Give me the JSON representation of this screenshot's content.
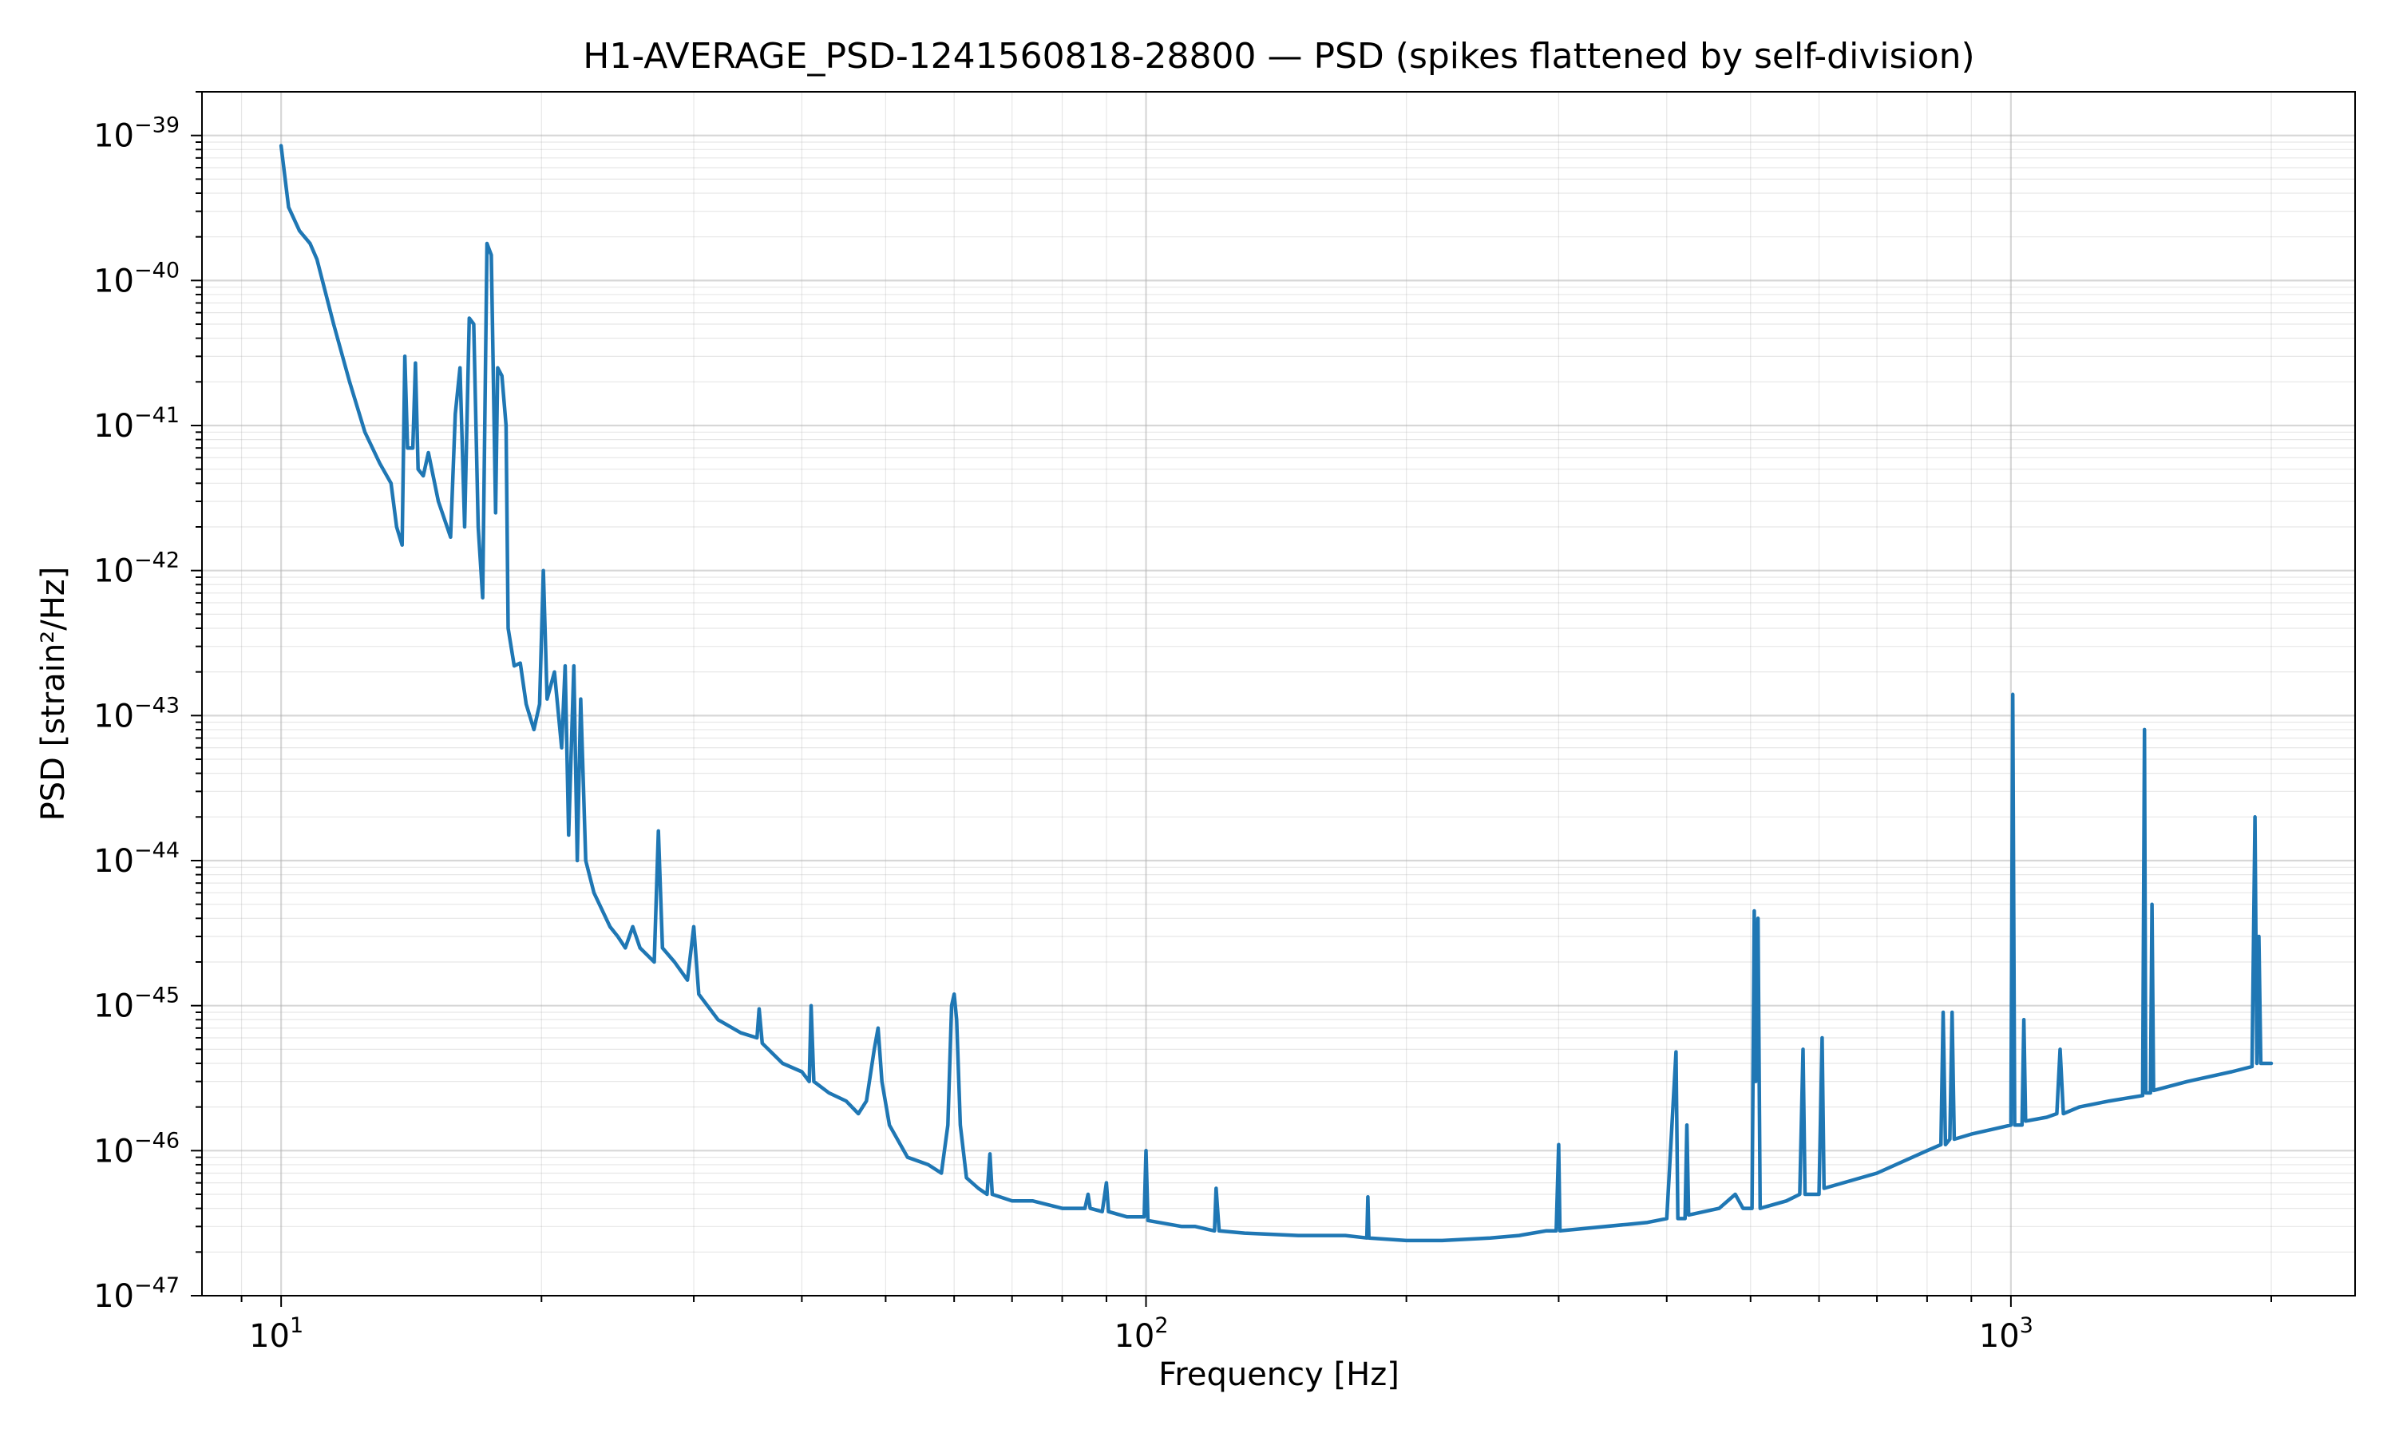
{
  "chart_data": {
    "type": "line",
    "title": "H1-AVERAGE_PSD-1241560818-28800 — PSD (spikes flattened by self-division)",
    "xlabel": "Frequency [Hz]",
    "ylabel": "PSD [strain²/Hz]",
    "xscale": "log",
    "yscale": "log",
    "xlim": [
      8.1,
      2500
    ],
    "ylim": [
      1e-47,
      2e-39
    ],
    "grid": true,
    "line_color": "#1f77b4",
    "x_ticks": [
      {
        "value": 10,
        "base": "10",
        "exp": "1"
      },
      {
        "value": 100,
        "base": "10",
        "exp": "2"
      },
      {
        "value": 1000,
        "base": "10",
        "exp": "3"
      }
    ],
    "y_ticks": [
      {
        "value": 1e-39,
        "base": "10",
        "exp": "−39"
      },
      {
        "value": 1e-40,
        "base": "10",
        "exp": "−40"
      },
      {
        "value": 1e-41,
        "base": "10",
        "exp": "−41"
      },
      {
        "value": 1e-42,
        "base": "10",
        "exp": "−42"
      },
      {
        "value": 1e-43,
        "base": "10",
        "exp": "−43"
      },
      {
        "value": 1e-44,
        "base": "10",
        "exp": "−44"
      },
      {
        "value": 1e-45,
        "base": "10",
        "exp": "−45"
      },
      {
        "value": 1e-46,
        "base": "10",
        "exp": "−46"
      },
      {
        "value": 1e-47,
        "base": "10",
        "exp": "−47"
      }
    ],
    "series": [
      {
        "points": [
          [
            10,
            8.5e-40
          ],
          [
            10.2,
            3.2e-40
          ],
          [
            10.5,
            2.2e-40
          ],
          [
            10.8,
            1.8e-40
          ],
          [
            11.0,
            1.4e-40
          ],
          [
            11.5,
            5e-41
          ],
          [
            12.0,
            2e-41
          ],
          [
            12.5,
            9e-42
          ],
          [
            13.0,
            5.5e-42
          ],
          [
            13.4,
            4e-42
          ],
          [
            13.6,
            2e-42
          ],
          [
            13.8,
            1.5e-42
          ],
          [
            13.9,
            3e-41
          ],
          [
            14.0,
            7e-42
          ],
          [
            14.2,
            7e-42
          ],
          [
            14.3,
            2.7e-41
          ],
          [
            14.4,
            5e-42
          ],
          [
            14.6,
            4.5e-42
          ],
          [
            14.8,
            6.5e-42
          ],
          [
            15.2,
            3e-42
          ],
          [
            15.7,
            1.7e-42
          ],
          [
            15.9,
            1.2e-41
          ],
          [
            16.1,
            2.5e-41
          ],
          [
            16.3,
            2e-42
          ],
          [
            16.5,
            5.5e-41
          ],
          [
            16.7,
            5e-41
          ],
          [
            16.9,
            2e-42
          ],
          [
            17.1,
            6.5e-43
          ],
          [
            17.3,
            1.8e-40
          ],
          [
            17.5,
            1.5e-40
          ],
          [
            17.7,
            2.5e-42
          ],
          [
            17.8,
            2.5e-41
          ],
          [
            18.0,
            2.2e-41
          ],
          [
            18.2,
            1e-41
          ],
          [
            18.3,
            4e-43
          ],
          [
            18.6,
            2.2e-43
          ],
          [
            18.9,
            2.3e-43
          ],
          [
            19.2,
            1.2e-43
          ],
          [
            19.6,
            8e-44
          ],
          [
            19.9,
            1.2e-43
          ],
          [
            20.1,
            1e-42
          ],
          [
            20.3,
            1.3e-43
          ],
          [
            20.7,
            2e-43
          ],
          [
            21.1,
            6e-44
          ],
          [
            21.3,
            2.2e-43
          ],
          [
            21.5,
            1.5e-44
          ],
          [
            21.8,
            2.2e-43
          ],
          [
            22.0,
            1e-44
          ],
          [
            22.2,
            1.3e-43
          ],
          [
            22.5,
            1e-44
          ],
          [
            23.0,
            6e-45
          ],
          [
            24.0,
            3.5e-45
          ],
          [
            24.5,
            3e-45
          ],
          [
            25.0,
            2.5e-45
          ],
          [
            25.5,
            3.5e-45
          ],
          [
            26.0,
            2.5e-45
          ],
          [
            27.0,
            2e-45
          ],
          [
            27.3,
            1.6e-44
          ],
          [
            27.6,
            2.5e-45
          ],
          [
            28.5,
            2e-45
          ],
          [
            29.5,
            1.5e-45
          ],
          [
            30.0,
            3.5e-45
          ],
          [
            30.4,
            1.2e-45
          ],
          [
            32.0,
            8e-46
          ],
          [
            34.0,
            6.5e-46
          ],
          [
            35.5,
            6e-46
          ],
          [
            35.7,
            9.5e-46
          ],
          [
            36.0,
            5.5e-46
          ],
          [
            38.0,
            4e-46
          ],
          [
            40.0,
            3.5e-46
          ],
          [
            40.8,
            3e-46
          ],
          [
            41.0,
            1e-45
          ],
          [
            41.3,
            3e-46
          ],
          [
            43.0,
            2.5e-46
          ],
          [
            45.0,
            2.2e-46
          ],
          [
            46.5,
            1.8e-46
          ],
          [
            47.5,
            2.2e-46
          ],
          [
            48.5,
            5e-46
          ],
          [
            49.0,
            7e-46
          ],
          [
            49.5,
            3e-46
          ],
          [
            50.5,
            1.5e-46
          ],
          [
            53.0,
            9e-47
          ],
          [
            56.0,
            8e-47
          ],
          [
            58.0,
            7e-47
          ],
          [
            59.0,
            1.5e-46
          ],
          [
            59.6,
            1e-45
          ],
          [
            60.0,
            1.2e-45
          ],
          [
            60.4,
            8e-46
          ],
          [
            61.0,
            1.5e-46
          ],
          [
            62.0,
            6.5e-47
          ],
          [
            64.0,
            5.5e-47
          ],
          [
            65.5,
            5e-47
          ],
          [
            66.0,
            9.5e-47
          ],
          [
            66.4,
            5e-47
          ],
          [
            70.0,
            4.5e-47
          ],
          [
            74.0,
            4.5e-47
          ],
          [
            80.0,
            4e-47
          ],
          [
            85.0,
            4e-47
          ],
          [
            85.7,
            5e-47
          ],
          [
            86.2,
            4e-47
          ],
          [
            89.0,
            3.8e-47
          ],
          [
            90.0,
            6e-47
          ],
          [
            90.5,
            3.8e-47
          ],
          [
            95.0,
            3.5e-47
          ],
          [
            99.5,
            3.5e-47
          ],
          [
            100.0,
            1e-46
          ],
          [
            100.5,
            3.3e-47
          ],
          [
            110.0,
            3e-47
          ],
          [
            114.0,
            3e-47
          ],
          [
            120.0,
            2.8e-47
          ],
          [
            120.5,
            5.5e-47
          ],
          [
            121.5,
            2.8e-47
          ],
          [
            130.0,
            2.7e-47
          ],
          [
            150.0,
            2.6e-47
          ],
          [
            170.0,
            2.6e-47
          ],
          [
            180.0,
            2.5e-47
          ],
          [
            180.5,
            4.8e-47
          ],
          [
            181.0,
            2.5e-47
          ],
          [
            200.0,
            2.4e-47
          ],
          [
            220.0,
            2.4e-47
          ],
          [
            250.0,
            2.5e-47
          ],
          [
            270.0,
            2.6e-47
          ],
          [
            280.0,
            2.7e-47
          ],
          [
            290.0,
            2.8e-47
          ],
          [
            298.0,
            2.8e-47
          ],
          [
            300.0,
            1.1e-46
          ],
          [
            301.0,
            2.8e-47
          ],
          [
            320.0,
            2.9e-47
          ],
          [
            360.0,
            3.1e-47
          ],
          [
            380.0,
            3.2e-47
          ],
          [
            400.0,
            3.4e-47
          ],
          [
            410.0,
            4.8e-46
          ],
          [
            412.0,
            3.4e-47
          ],
          [
            420.0,
            3.4e-47
          ],
          [
            422.0,
            1.5e-46
          ],
          [
            424.0,
            3.6e-47
          ],
          [
            460.0,
            4e-47
          ],
          [
            480.0,
            5e-47
          ],
          [
            490.0,
            4e-47
          ],
          [
            502.0,
            4e-47
          ],
          [
            505.0,
            4.5e-45
          ],
          [
            507.0,
            3e-46
          ],
          [
            510.0,
            4e-45
          ],
          [
            513.0,
            4e-47
          ],
          [
            550.0,
            4.5e-47
          ],
          [
            570.0,
            5e-47
          ],
          [
            575.0,
            5e-46
          ],
          [
            578.0,
            5e-47
          ],
          [
            600.0,
            5e-47
          ],
          [
            605.0,
            6e-46
          ],
          [
            608.0,
            5.5e-47
          ],
          [
            700.0,
            7e-47
          ],
          [
            800.0,
            1e-46
          ],
          [
            830.0,
            1.1e-46
          ],
          [
            835.0,
            9e-46
          ],
          [
            840.0,
            1.1e-46
          ],
          [
            850.0,
            1.2e-46
          ],
          [
            855.0,
            9e-46
          ],
          [
            860.0,
            1.2e-46
          ],
          [
            900.0,
            1.3e-46
          ],
          [
            950.0,
            1.4e-46
          ],
          [
            1000.0,
            1.5e-46
          ],
          [
            1005.0,
            1.4e-43
          ],
          [
            1010.0,
            1.5e-46
          ],
          [
            1030.0,
            1.5e-46
          ],
          [
            1035.0,
            8e-46
          ],
          [
            1040.0,
            1.6e-46
          ],
          [
            1100.0,
            1.7e-46
          ],
          [
            1130.0,
            1.8e-46
          ],
          [
            1140.0,
            5e-46
          ],
          [
            1150.0,
            1.8e-46
          ],
          [
            1200.0,
            2e-46
          ],
          [
            1300.0,
            2.2e-46
          ],
          [
            1420.0,
            2.4e-46
          ],
          [
            1427.0,
            8e-44
          ],
          [
            1432.0,
            2.5e-46
          ],
          [
            1450.0,
            2.5e-46
          ],
          [
            1456.0,
            5e-45
          ],
          [
            1462.0,
            2.6e-46
          ],
          [
            1600.0,
            3e-46
          ],
          [
            1800.0,
            3.5e-46
          ],
          [
            1900.0,
            3.8e-46
          ],
          [
            1915.0,
            2e-44
          ],
          [
            1925.0,
            4e-46
          ],
          [
            1935.0,
            3e-45
          ],
          [
            1945.0,
            4e-46
          ],
          [
            2000.0,
            4e-46
          ]
        ]
      }
    ]
  }
}
